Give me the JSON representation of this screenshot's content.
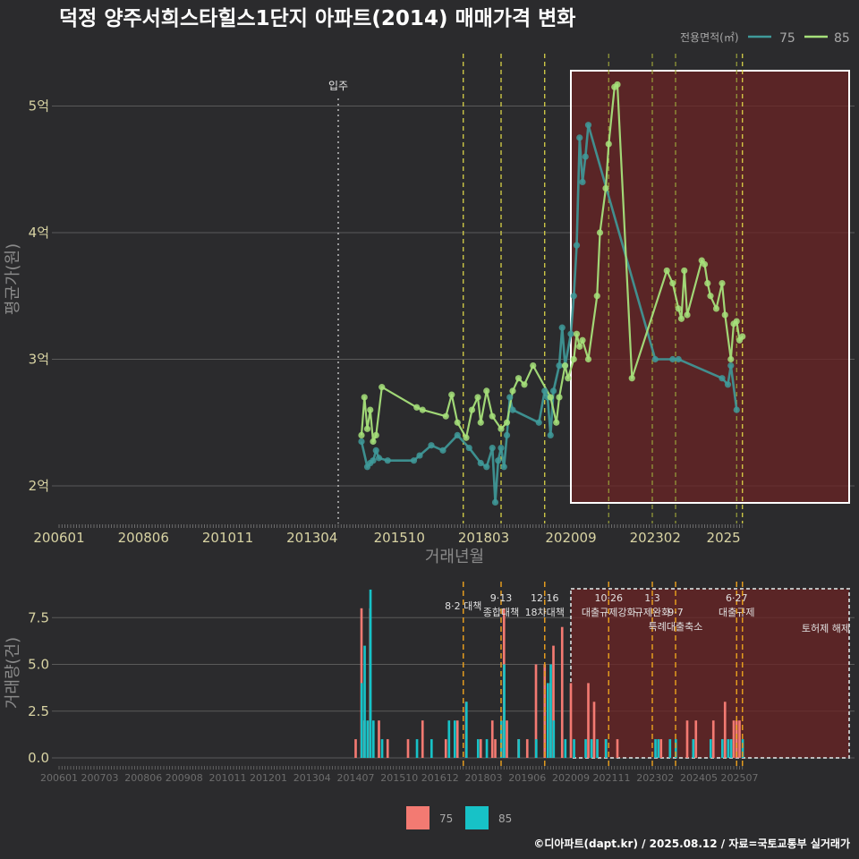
{
  "title": "덕정 양주서희스타힐스1단지 아파트(2014) 매매가격 변화",
  "credit": "©디아파트(dapt.kr) / 2025.08.12 / 자료=국토교통부 실거래가",
  "colors": {
    "bg": "#2b2b2d",
    "s75_price": "#3f9a9a",
    "s85_price": "#a6e07a",
    "s75_bar": "#f37a72",
    "s85_bar": "#17c2c7",
    "highlight": "#6b2424",
    "event_dash_yellow": "#e7e04a",
    "event_dash_olive": "#9aa23a",
    "event_dash_orange": "#e39b1e"
  },
  "chart_data": [
    {
      "type": "line",
      "title": "덕정 양주서희스타힐스1단지 아파트(2014) 매매가격 변화",
      "xlabel": "거래년월",
      "ylabel": "평균가(원)",
      "x_ticks": [
        "200601",
        "200806",
        "201011",
        "201304",
        "201510",
        "201803",
        "202009",
        "202302",
        "2025"
      ],
      "y_ticks": [
        "2억",
        "3억",
        "4억",
        "5억"
      ],
      "y_range_eok": [
        1.75,
        5.3
      ],
      "legend": {
        "title": "전용면적(㎡)",
        "items": [
          "75",
          "85"
        ],
        "position": "top-right"
      },
      "move_in_label": "입주",
      "series": [
        {
          "name": "75",
          "points": [
            [
              "2014-09",
              2.35
            ],
            [
              "2014-11",
              2.15
            ],
            [
              "2014-12",
              2.18
            ],
            [
              "2015-01",
              2.2
            ],
            [
              "2015-02",
              2.28
            ],
            [
              "2015-03",
              2.22
            ],
            [
              "2015-06",
              2.2
            ],
            [
              "2016-03",
              2.2
            ],
            [
              "2016-05",
              2.24
            ],
            [
              "2016-09",
              2.32
            ],
            [
              "2017-01",
              2.28
            ],
            [
              "2017-06",
              2.4
            ],
            [
              "2017-10",
              2.3
            ],
            [
              "2018-02",
              2.18
            ],
            [
              "2018-04",
              2.15
            ],
            [
              "2018-06",
              2.3
            ],
            [
              "2018-07",
              1.87
            ],
            [
              "2018-08",
              2.2
            ],
            [
              "2018-09",
              2.3
            ],
            [
              "2018-10",
              2.15
            ],
            [
              "2018-11",
              2.4
            ],
            [
              "2018-12",
              2.7
            ],
            [
              "2019-01",
              2.6
            ],
            [
              "2019-10",
              2.5
            ],
            [
              "2019-12",
              2.75
            ],
            [
              "2020-01",
              2.7
            ],
            [
              "2020-02",
              2.4
            ],
            [
              "2020-03",
              2.75
            ],
            [
              "2020-05",
              2.95
            ],
            [
              "2020-06",
              3.25
            ],
            [
              "2020-07",
              2.95
            ],
            [
              "2020-09",
              3.2
            ],
            [
              "2020-10",
              3.5
            ],
            [
              "2020-11",
              3.9
            ],
            [
              "2020-12",
              4.75
            ],
            [
              "2021-01",
              4.4
            ],
            [
              "2021-02",
              4.6
            ],
            [
              "2021-03",
              4.85
            ],
            [
              "2023-02",
              3.0
            ],
            [
              "2023-08",
              3.0
            ],
            [
              "2023-10",
              3.0
            ],
            [
              "2025-01",
              2.85
            ],
            [
              "2025-03",
              2.8
            ],
            [
              "2025-04",
              2.95
            ],
            [
              "2025-06",
              2.6
            ]
          ]
        },
        {
          "name": "85",
          "points": [
            [
              "2014-09",
              2.4
            ],
            [
              "2014-10",
              2.7
            ],
            [
              "2014-11",
              2.45
            ],
            [
              "2014-12",
              2.6
            ],
            [
              "2015-01",
              2.35
            ],
            [
              "2015-02",
              2.4
            ],
            [
              "2015-04",
              2.78
            ],
            [
              "2016-04",
              2.62
            ],
            [
              "2016-06",
              2.6
            ],
            [
              "2017-02",
              2.55
            ],
            [
              "2017-04",
              2.72
            ],
            [
              "2017-06",
              2.5
            ],
            [
              "2017-09",
              2.38
            ],
            [
              "2017-11",
              2.6
            ],
            [
              "2018-01",
              2.7
            ],
            [
              "2018-02",
              2.5
            ],
            [
              "2018-04",
              2.75
            ],
            [
              "2018-06",
              2.55
            ],
            [
              "2018-09",
              2.45
            ],
            [
              "2018-11",
              2.5
            ],
            [
              "2019-01",
              2.75
            ],
            [
              "2019-03",
              2.85
            ],
            [
              "2019-05",
              2.8
            ],
            [
              "2019-08",
              2.95
            ],
            [
              "2020-02",
              2.7
            ],
            [
              "2020-04",
              2.5
            ],
            [
              "2020-05",
              2.7
            ],
            [
              "2020-07",
              2.95
            ],
            [
              "2020-08",
              2.85
            ],
            [
              "2020-10",
              3.0
            ],
            [
              "2020-11",
              3.2
            ],
            [
              "2020-12",
              3.1
            ],
            [
              "2021-01",
              3.15
            ],
            [
              "2021-03",
              3.0
            ],
            [
              "2021-06",
              3.5
            ],
            [
              "2021-07",
              4.0
            ],
            [
              "2021-09",
              4.35
            ],
            [
              "2021-10",
              4.7
            ],
            [
              "2021-12",
              5.15
            ],
            [
              "2022-01",
              5.17
            ],
            [
              "2022-06",
              2.85
            ],
            [
              "2023-06",
              3.7
            ],
            [
              "2023-08",
              3.6
            ],
            [
              "2023-10",
              3.4
            ],
            [
              "2023-11",
              3.32
            ],
            [
              "2023-12",
              3.7
            ],
            [
              "2024-01",
              3.35
            ],
            [
              "2024-06",
              3.78
            ],
            [
              "2024-07",
              3.75
            ],
            [
              "2024-08",
              3.6
            ],
            [
              "2024-09",
              3.5
            ],
            [
              "2024-11",
              3.4
            ],
            [
              "2025-01",
              3.6
            ],
            [
              "2025-02",
              3.35
            ],
            [
              "2025-04",
              3.0
            ],
            [
              "2025-05",
              3.28
            ],
            [
              "2025-06",
              3.3
            ],
            [
              "2025-07",
              3.15
            ],
            [
              "2025-08",
              3.18
            ]
          ]
        }
      ]
    },
    {
      "type": "bar",
      "xlabel": "",
      "ylabel": "거래량(건)",
      "x_ticks": [
        "200601",
        "200703",
        "200806",
        "200908",
        "201011",
        "201201",
        "201304",
        "201407",
        "201510",
        "201612",
        "201803",
        "201906",
        "202009",
        "202111",
        "202302",
        "202405",
        "202507"
      ],
      "y_ticks": [
        "0.0",
        "2.5",
        "5.0",
        "7.5"
      ],
      "y_range": [
        -0.5,
        9.3
      ],
      "legend": {
        "items": [
          "75",
          "85"
        ],
        "position": "bottom"
      },
      "events": [
        {
          "date": "2017-08",
          "label": "8·2 대책"
        },
        {
          "date": "2018-09",
          "label": "9·13 종합대책"
        },
        {
          "date": "2019-12",
          "label": "12·16 18차대책"
        },
        {
          "date": "2021-10",
          "label": "10·26 대출규제강화"
        },
        {
          "date": "2023-01",
          "label": "1·3 규제완화"
        },
        {
          "date": "2023-09",
          "label": "9·7 특례대출축소"
        },
        {
          "date": "2025-06",
          "label": "6·27 대출규제"
        },
        {
          "date": "2025-08",
          "label": "토허제 해제"
        }
      ],
      "series": [
        {
          "name": "75",
          "points": [
            [
              "2014-07",
              1
            ],
            [
              "2014-09",
              8
            ],
            [
              "2014-10",
              2
            ],
            [
              "2014-12",
              8
            ],
            [
              "2015-03",
              2
            ],
            [
              "2015-06",
              1
            ],
            [
              "2016-01",
              1
            ],
            [
              "2016-06",
              2
            ],
            [
              "2017-02",
              1
            ],
            [
              "2017-06",
              2
            ],
            [
              "2017-09",
              3
            ],
            [
              "2018-02",
              1
            ],
            [
              "2018-06",
              2
            ],
            [
              "2018-07",
              1
            ],
            [
              "2018-10",
              8
            ],
            [
              "2018-11",
              2
            ],
            [
              "2019-03",
              1
            ],
            [
              "2019-06",
              1
            ],
            [
              "2019-09",
              5
            ],
            [
              "2019-12",
              5
            ],
            [
              "2020-02",
              4
            ],
            [
              "2020-03",
              6
            ],
            [
              "2020-06",
              7
            ],
            [
              "2020-09",
              4
            ],
            [
              "2021-03",
              4
            ],
            [
              "2021-05",
              3
            ],
            [
              "2021-09",
              1
            ],
            [
              "2022-01",
              1
            ],
            [
              "2023-04",
              1
            ],
            [
              "2024-01",
              2
            ],
            [
              "2024-04",
              2
            ],
            [
              "2024-10",
              2
            ],
            [
              "2025-02",
              3
            ],
            [
              "2025-05",
              2
            ],
            [
              "2025-06",
              2
            ],
            [
              "2025-07",
              2
            ]
          ]
        },
        {
          "name": "85",
          "points": [
            [
              "2014-09",
              4
            ],
            [
              "2014-10",
              6
            ],
            [
              "2014-11",
              2
            ],
            [
              "2014-12",
              9
            ],
            [
              "2015-01",
              2
            ],
            [
              "2015-04",
              1
            ],
            [
              "2016-04",
              1
            ],
            [
              "2016-09",
              1
            ],
            [
              "2017-03",
              2
            ],
            [
              "2017-05",
              2
            ],
            [
              "2017-09",
              3
            ],
            [
              "2018-01",
              1
            ],
            [
              "2018-04",
              1
            ],
            [
              "2018-09",
              2
            ],
            [
              "2018-10",
              5
            ],
            [
              "2019-03",
              1
            ],
            [
              "2019-09",
              1
            ],
            [
              "2020-01",
              4
            ],
            [
              "2020-02",
              5
            ],
            [
              "2020-03",
              2
            ],
            [
              "2020-07",
              1
            ],
            [
              "2020-10",
              1
            ],
            [
              "2021-02",
              1
            ],
            [
              "2021-04",
              1
            ],
            [
              "2021-06",
              1
            ],
            [
              "2021-09",
              1
            ],
            [
              "2023-02",
              1
            ],
            [
              "2023-03",
              1
            ],
            [
              "2023-07",
              1
            ],
            [
              "2023-09",
              1
            ],
            [
              "2024-03",
              1
            ],
            [
              "2024-09",
              1
            ],
            [
              "2025-01",
              1
            ],
            [
              "2025-03",
              1
            ],
            [
              "2025-04",
              1
            ],
            [
              "2025-08",
              1
            ]
          ]
        }
      ]
    }
  ]
}
